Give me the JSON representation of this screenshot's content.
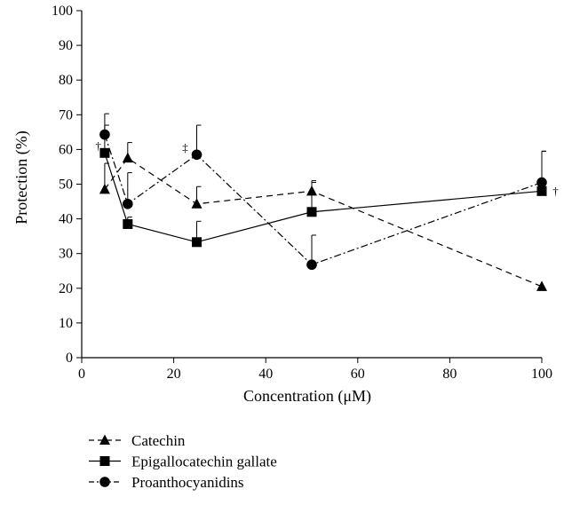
{
  "chart_data": {
    "type": "line",
    "xlabel": "Concentration (μM)",
    "ylabel": "Protection (%)",
    "xlim": [
      0,
      100
    ],
    "ylim": [
      0,
      100
    ],
    "x_ticks": [
      0,
      20,
      40,
      60,
      80,
      100
    ],
    "y_ticks": [
      0,
      10,
      20,
      30,
      40,
      50,
      60,
      70,
      80,
      90,
      100
    ],
    "grid": false,
    "legend_position": "bottom-left",
    "series": [
      {
        "name": "Catechin",
        "marker": "triangle",
        "line_style": "dashed",
        "x": [
          5,
          10,
          25,
          50,
          100
        ],
        "y": [
          48.5,
          57.5,
          44.3,
          48.0,
          20.5
        ],
        "error_upper": [
          7.5,
          4.5,
          5.0,
          3.0,
          0
        ]
      },
      {
        "name": "Epigallocatechin gallate",
        "marker": "square",
        "line_style": "solid",
        "x": [
          5,
          10,
          25,
          50,
          100
        ],
        "y": [
          59.0,
          38.5,
          33.3,
          42.0,
          48.0
        ],
        "error_upper": [
          8.0,
          2.0,
          6.0,
          8.5,
          11.5
        ]
      },
      {
        "name": "Proanthocyanidins",
        "marker": "circle",
        "line_style": "dashdot",
        "x": [
          5,
          10,
          25,
          50,
          100
        ],
        "y": [
          64.3,
          44.3,
          58.5,
          26.8,
          50.5
        ],
        "error_upper": [
          6.0,
          9.0,
          8.5,
          8.5,
          9.0
        ]
      }
    ],
    "annotations": [
      {
        "text": "†",
        "x": 3.6,
        "y": 61.0
      },
      {
        "text": "‡",
        "x": 22.5,
        "y": 60.5
      },
      {
        "text": "†",
        "x": 103.0,
        "y": 48.0
      }
    ]
  }
}
